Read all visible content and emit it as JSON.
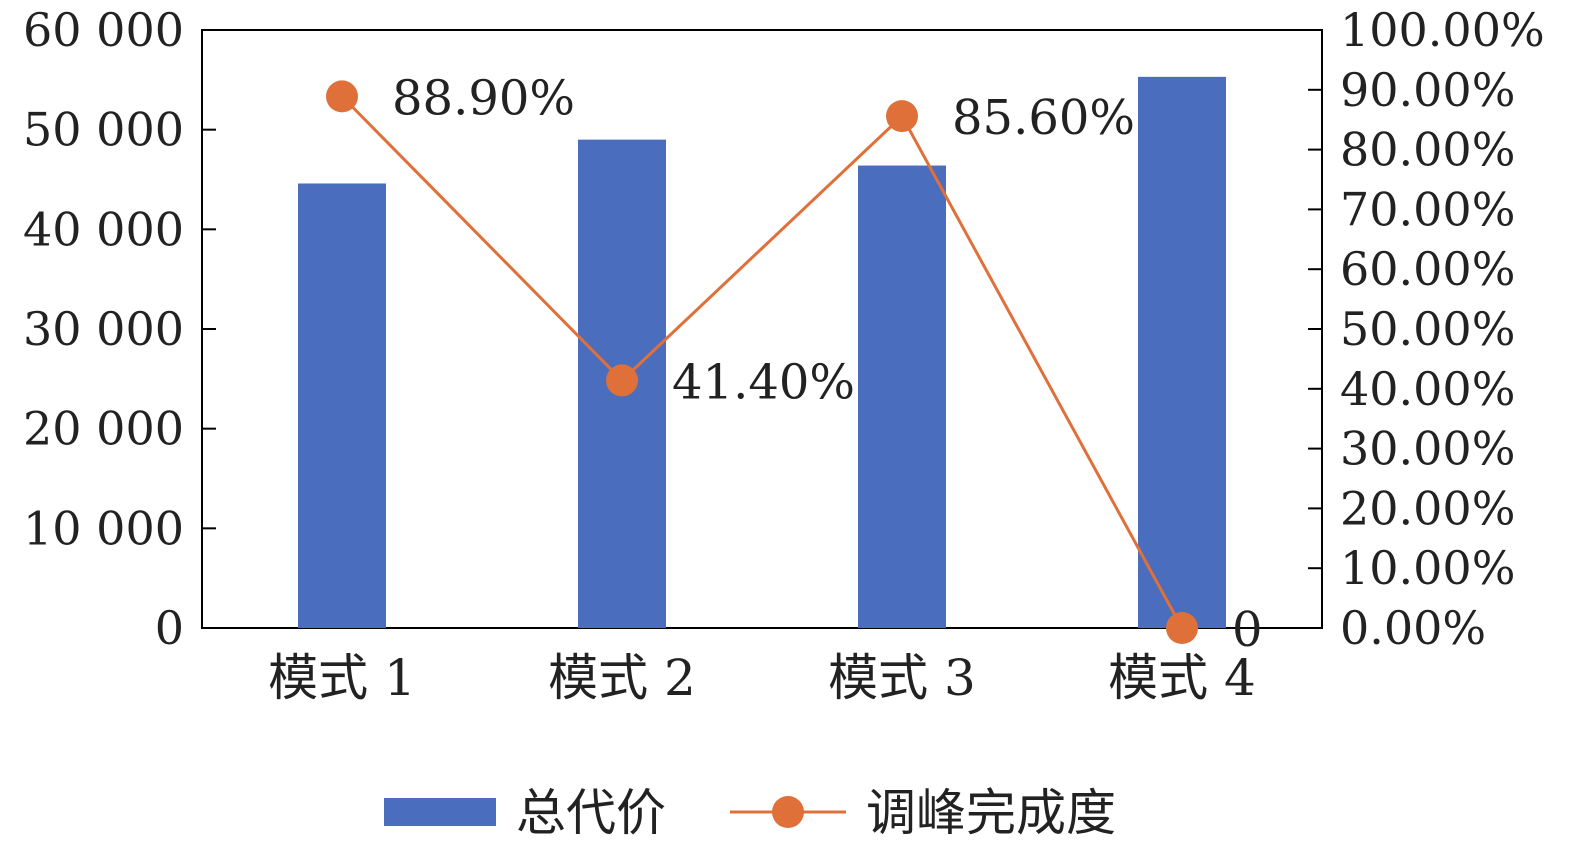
{
  "chart_data": {
    "type": "bar",
    "categories": [
      "模式 1",
      "模式 2",
      "模式 3",
      "模式 4"
    ],
    "series": [
      {
        "name": "总代价",
        "type": "bar",
        "axis": "left",
        "values": [
          44600,
          49000,
          46400,
          55300
        ],
        "color": "#4a6dbd"
      },
      {
        "name": "调峰完成度",
        "type": "line",
        "axis": "right",
        "values": [
          88.9,
          41.4,
          85.6,
          0
        ],
        "color": "#e0703a",
        "labels": [
          "88.90%",
          "41.40%",
          "85.60%",
          "0"
        ]
      }
    ],
    "y_left": {
      "range": [
        0,
        60000
      ],
      "ticks": [
        0,
        10000,
        20000,
        30000,
        40000,
        50000,
        60000
      ],
      "tick_labels": [
        "0",
        "10 000",
        "20 000",
        "30 000",
        "40 000",
        "50 000",
        "60 000"
      ]
    },
    "y_right": {
      "range": [
        0,
        100
      ],
      "ticks": [
        0,
        10,
        20,
        30,
        40,
        50,
        60,
        70,
        80,
        90,
        100
      ],
      "tick_labels": [
        "0.00%",
        "10.00%",
        "20.00%",
        "30.00%",
        "40.00%",
        "50.00%",
        "60.00%",
        "70.00%",
        "80.00%",
        "90.00%",
        "100.00%"
      ]
    },
    "grid": false,
    "legend_position": "bottom-center",
    "title": "",
    "xlabel": "",
    "ylabel": ""
  }
}
